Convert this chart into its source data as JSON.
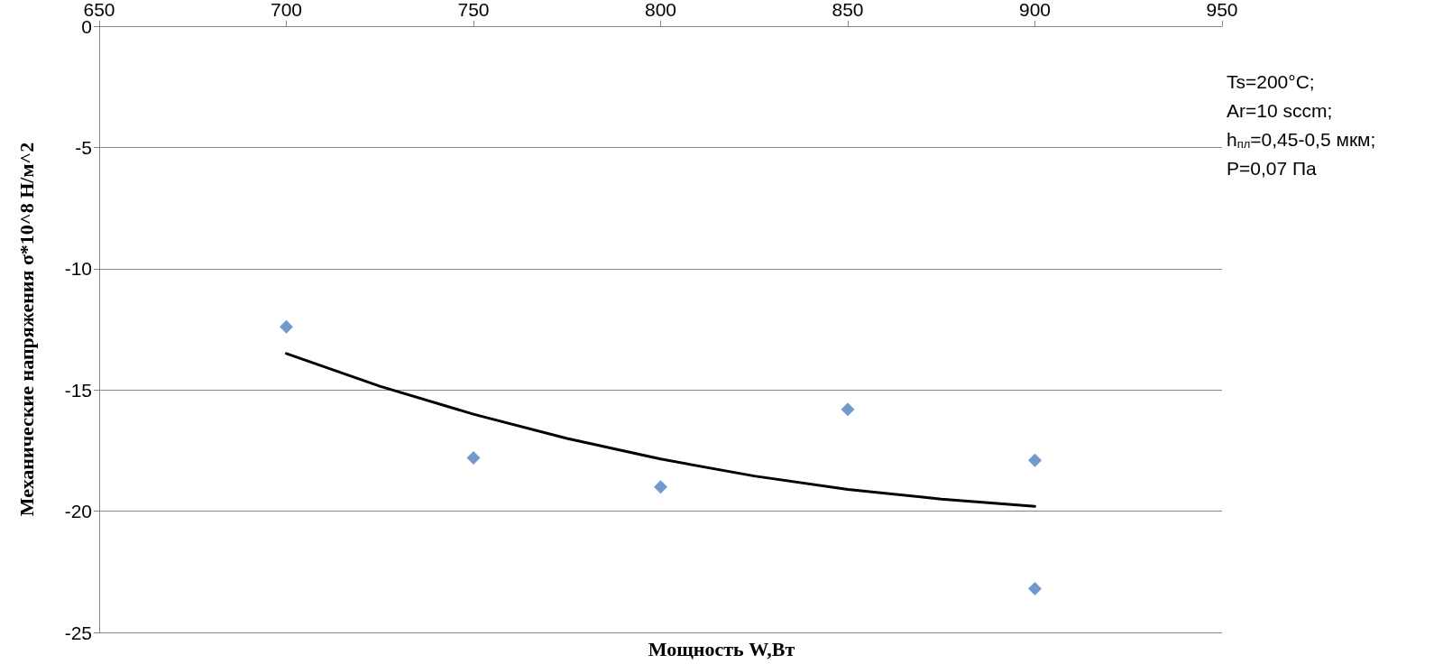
{
  "chart_data": {
    "type": "scatter",
    "xlabel": "Мощность W,Вт",
    "ylabel": "Механические напряжения σ*10^8 Н/м^2",
    "annotations": [
      "Ts=200°C;",
      "Ar=10 sccm;",
      "h$_{пл}$=0,45-0,5 мкм;",
      "P=0,07 Па"
    ],
    "series": [
      {
        "color": "#4f81bd",
        "x": [
          700,
          750,
          800,
          850,
          900,
          900
        ],
        "values": [
          -12.4,
          -17.8,
          -19.0,
          -15.8,
          -17.9,
          -23.2
        ]
      },
      {
        "type": "line",
        "color": "#000000",
        "marker": "none",
        "x": [
          700,
          725,
          750,
          775,
          800,
          825,
          850,
          875,
          900
        ],
        "values": [
          -13.5,
          -14.85,
          -16.0,
          -17.0,
          -17.85,
          -18.55,
          -19.1,
          -19.5,
          -19.8
        ]
      }
    ],
    "marker": "diamond",
    "line_style": "solid",
    "xlim": [
      650,
      950
    ],
    "xticks": [
      650,
      700,
      750,
      800,
      850,
      900,
      950
    ],
    "ylim": [
      -25,
      0
    ],
    "yticks": [
      0,
      -5,
      -10,
      -15,
      -20,
      -25
    ],
    "grid": "y"
  }
}
